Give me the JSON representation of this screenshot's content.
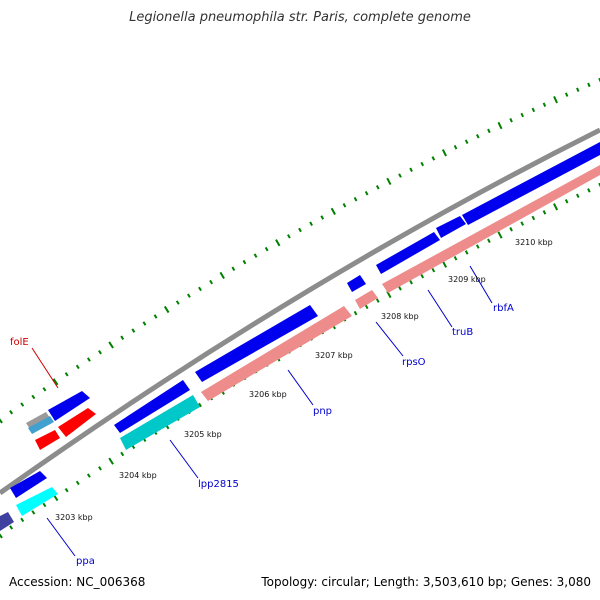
{
  "title": "Legionella pneumophila str. Paris, complete genome",
  "footer": {
    "accession": "Accession: NC_006368",
    "topology": "Topology: circular; Length: 3,503,610 bp; Genes: 3,080"
  },
  "colors": {
    "backbone": "#8c8c8c",
    "forward_gene": "#0000ee",
    "reverse_gene": "#ee8c8c",
    "cyan_gene": "#00c8c8",
    "bright_cyan_gene": "#00ffff",
    "red_gene": "#ff0000",
    "slate_gene": "#4040a0",
    "tick": "#008000",
    "gene_label": "#0000cc",
    "rna_label": "#cc0000"
  },
  "scale_labels": [
    "3203 kbp",
    "3204 kbp",
    "3205 kbp",
    "3206 kbp",
    "3207 kbp",
    "3208 kbp",
    "3209 kbp",
    "3210 kbp"
  ],
  "gene_labels": [
    {
      "name": "folE",
      "kind": "rna"
    },
    {
      "name": "ppa",
      "kind": "gene"
    },
    {
      "name": "lpp2815",
      "kind": "gene"
    },
    {
      "name": "pnp",
      "kind": "gene"
    },
    {
      "name": "rpsO",
      "kind": "gene"
    },
    {
      "name": "truB",
      "kind": "gene"
    },
    {
      "name": "rbfA",
      "kind": "gene"
    }
  ]
}
